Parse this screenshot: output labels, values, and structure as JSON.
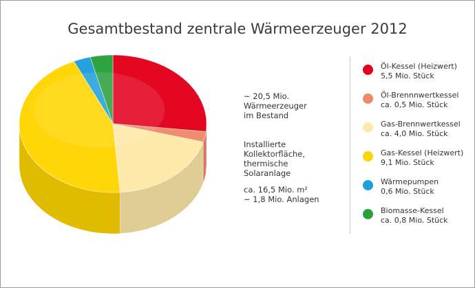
{
  "title": "Gesamtbestand zentrale Wärmeerzeuger 2012",
  "annotations": [
    "~ 20,5 Mio.\nWärmeerzeuger\nim Bestand",
    "Installierte\nKollektorfläche,\nthermische\nSolaranlage",
    "ca. 16,5 Mio. m²\n~ 1,8 Mio. Anlagen"
  ],
  "chart_data": {
    "type": "pie",
    "title": "Gesamtbestand zentrale Wärmeerzeuger 2012",
    "total_label": "~ 20,5 Mio. Wärmeerzeuger im Bestand",
    "legend_position": "right",
    "slices": [
      {
        "name": "Öl-Kessel (Heizwert)",
        "label": "5,5 Mio. Stück",
        "value": 5.5,
        "color": "#e3001b"
      },
      {
        "name": "Öl-Brennnwertkessel",
        "label": "ca. 0,5 Mio. Stück",
        "value": 0.5,
        "color": "#ef8a6a"
      },
      {
        "name": "Gas-Brennwertkessel",
        "label": "ca. 4,0 Mio. Stück",
        "value": 4.0,
        "color": "#fde9a8"
      },
      {
        "name": "Gas-Kessel (Heizwert)",
        "label": "9,1 Mio. Stück",
        "value": 9.1,
        "color": "#ffd500"
      },
      {
        "name": "Wärmepumpen",
        "label": "0,6 Mio. Stück",
        "value": 0.6,
        "color": "#1ea0dc"
      },
      {
        "name": "Biomasse-Kessel",
        "label": "ca. 0,8 Mio. Stück",
        "value": 0.8,
        "color": "#2ba03a"
      }
    ]
  }
}
